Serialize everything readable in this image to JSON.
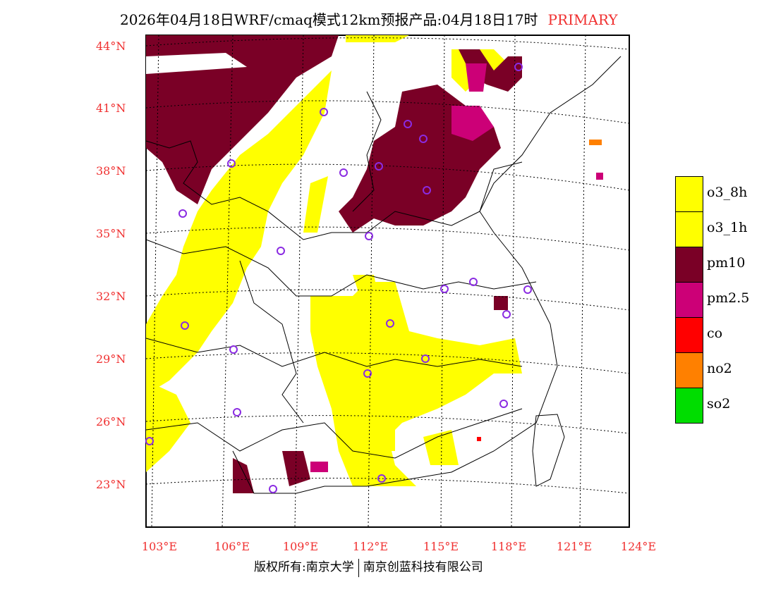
{
  "title": {
    "main": "2026年04月18日WRF/cmaq模式12km预报产品:04月18日17时",
    "tag": "PRIMARY"
  },
  "lat_labels": [
    "44°N",
    "41°N",
    "38°N",
    "35°N",
    "32°N",
    "29°N",
    "26°N",
    "23°N"
  ],
  "lon_labels": [
    "103°E",
    "106°E",
    "109°E",
    "112°E",
    "115°E",
    "118°E",
    "121°E",
    "124°E"
  ],
  "legend": [
    {
      "label": "o3_8h",
      "color": "#ffff00"
    },
    {
      "label": "o3_1h",
      "color": "#ffff00"
    },
    {
      "label": "pm10",
      "color": "#7a0026"
    },
    {
      "label": "pm2.5",
      "color": "#cc0077"
    },
    {
      "label": "co",
      "color": "#ff0000"
    },
    {
      "label": "no2",
      "color": "#ff8000"
    },
    {
      "label": "so2",
      "color": "#00dd00"
    }
  ],
  "footer": {
    "left": "版权所有:南京大学",
    "right": "南京创蓝科技有限公司"
  }
}
